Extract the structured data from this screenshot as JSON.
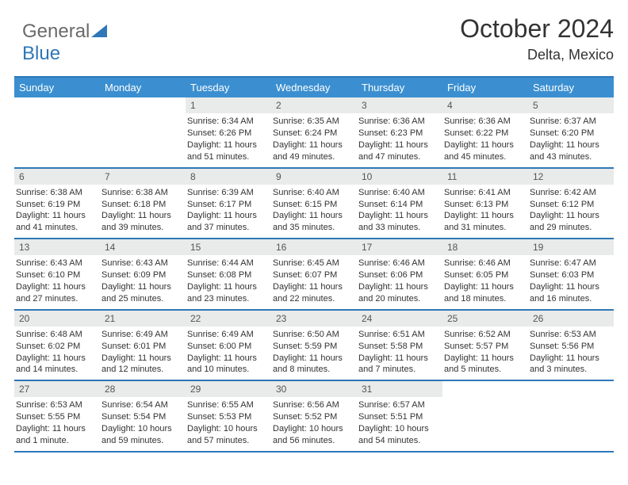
{
  "brand": {
    "part1": "General",
    "part2": "Blue"
  },
  "title": "October 2024",
  "location": "Delta, Mexico",
  "colors": {
    "header_bg": "#3b8fd0",
    "border": "#2e77b8",
    "daynum_bg": "#e9eaea",
    "text": "#333333"
  },
  "day_names": [
    "Sunday",
    "Monday",
    "Tuesday",
    "Wednesday",
    "Thursday",
    "Friday",
    "Saturday"
  ],
  "weeks": [
    [
      null,
      null,
      {
        "n": "1",
        "sr": "6:34 AM",
        "ss": "6:26 PM",
        "dl": "11 hours and 51 minutes."
      },
      {
        "n": "2",
        "sr": "6:35 AM",
        "ss": "6:24 PM",
        "dl": "11 hours and 49 minutes."
      },
      {
        "n": "3",
        "sr": "6:36 AM",
        "ss": "6:23 PM",
        "dl": "11 hours and 47 minutes."
      },
      {
        "n": "4",
        "sr": "6:36 AM",
        "ss": "6:22 PM",
        "dl": "11 hours and 45 minutes."
      },
      {
        "n": "5",
        "sr": "6:37 AM",
        "ss": "6:20 PM",
        "dl": "11 hours and 43 minutes."
      }
    ],
    [
      {
        "n": "6",
        "sr": "6:38 AM",
        "ss": "6:19 PM",
        "dl": "11 hours and 41 minutes."
      },
      {
        "n": "7",
        "sr": "6:38 AM",
        "ss": "6:18 PM",
        "dl": "11 hours and 39 minutes."
      },
      {
        "n": "8",
        "sr": "6:39 AM",
        "ss": "6:17 PM",
        "dl": "11 hours and 37 minutes."
      },
      {
        "n": "9",
        "sr": "6:40 AM",
        "ss": "6:15 PM",
        "dl": "11 hours and 35 minutes."
      },
      {
        "n": "10",
        "sr": "6:40 AM",
        "ss": "6:14 PM",
        "dl": "11 hours and 33 minutes."
      },
      {
        "n": "11",
        "sr": "6:41 AM",
        "ss": "6:13 PM",
        "dl": "11 hours and 31 minutes."
      },
      {
        "n": "12",
        "sr": "6:42 AM",
        "ss": "6:12 PM",
        "dl": "11 hours and 29 minutes."
      }
    ],
    [
      {
        "n": "13",
        "sr": "6:43 AM",
        "ss": "6:10 PM",
        "dl": "11 hours and 27 minutes."
      },
      {
        "n": "14",
        "sr": "6:43 AM",
        "ss": "6:09 PM",
        "dl": "11 hours and 25 minutes."
      },
      {
        "n": "15",
        "sr": "6:44 AM",
        "ss": "6:08 PM",
        "dl": "11 hours and 23 minutes."
      },
      {
        "n": "16",
        "sr": "6:45 AM",
        "ss": "6:07 PM",
        "dl": "11 hours and 22 minutes."
      },
      {
        "n": "17",
        "sr": "6:46 AM",
        "ss": "6:06 PM",
        "dl": "11 hours and 20 minutes."
      },
      {
        "n": "18",
        "sr": "6:46 AM",
        "ss": "6:05 PM",
        "dl": "11 hours and 18 minutes."
      },
      {
        "n": "19",
        "sr": "6:47 AM",
        "ss": "6:03 PM",
        "dl": "11 hours and 16 minutes."
      }
    ],
    [
      {
        "n": "20",
        "sr": "6:48 AM",
        "ss": "6:02 PM",
        "dl": "11 hours and 14 minutes."
      },
      {
        "n": "21",
        "sr": "6:49 AM",
        "ss": "6:01 PM",
        "dl": "11 hours and 12 minutes."
      },
      {
        "n": "22",
        "sr": "6:49 AM",
        "ss": "6:00 PM",
        "dl": "11 hours and 10 minutes."
      },
      {
        "n": "23",
        "sr": "6:50 AM",
        "ss": "5:59 PM",
        "dl": "11 hours and 8 minutes."
      },
      {
        "n": "24",
        "sr": "6:51 AM",
        "ss": "5:58 PM",
        "dl": "11 hours and 7 minutes."
      },
      {
        "n": "25",
        "sr": "6:52 AM",
        "ss": "5:57 PM",
        "dl": "11 hours and 5 minutes."
      },
      {
        "n": "26",
        "sr": "6:53 AM",
        "ss": "5:56 PM",
        "dl": "11 hours and 3 minutes."
      }
    ],
    [
      {
        "n": "27",
        "sr": "6:53 AM",
        "ss": "5:55 PM",
        "dl": "11 hours and 1 minute."
      },
      {
        "n": "28",
        "sr": "6:54 AM",
        "ss": "5:54 PM",
        "dl": "10 hours and 59 minutes."
      },
      {
        "n": "29",
        "sr": "6:55 AM",
        "ss": "5:53 PM",
        "dl": "10 hours and 57 minutes."
      },
      {
        "n": "30",
        "sr": "6:56 AM",
        "ss": "5:52 PM",
        "dl": "10 hours and 56 minutes."
      },
      {
        "n": "31",
        "sr": "6:57 AM",
        "ss": "5:51 PM",
        "dl": "10 hours and 54 minutes."
      },
      null,
      null
    ]
  ]
}
